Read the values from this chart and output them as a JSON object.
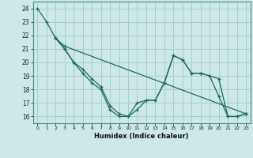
{
  "title": "",
  "xlabel": "Humidex (Indice chaleur)",
  "bg_color": "#cce8e8",
  "grid_color": "#aacccc",
  "line_color": "#1a6b5a",
  "xlim": [
    -0.5,
    23.5
  ],
  "ylim": [
    15.5,
    24.5
  ],
  "xticks": [
    0,
    1,
    2,
    3,
    4,
    5,
    6,
    7,
    8,
    9,
    10,
    11,
    12,
    13,
    14,
    15,
    16,
    17,
    18,
    19,
    20,
    21,
    22,
    23
  ],
  "yticks": [
    16,
    17,
    18,
    19,
    20,
    21,
    22,
    23,
    24
  ],
  "line1_x": [
    0,
    1,
    2,
    3,
    4,
    5,
    6,
    7,
    8,
    9,
    10,
    11,
    12,
    13,
    14,
    15,
    16,
    17,
    18,
    19,
    20,
    21,
    22,
    23
  ],
  "line1_y": [
    24,
    23,
    21.8,
    21,
    20,
    19.2,
    18.5,
    18,
    16.5,
    16,
    16,
    17,
    17.2,
    17.2,
    18.5,
    20.5,
    20.2,
    19.2,
    19.2,
    19,
    18.8,
    16,
    16,
    16.2
  ],
  "line2_x": [
    2,
    3,
    4,
    5,
    6,
    7,
    8,
    9,
    10,
    11,
    12,
    13,
    14,
    15,
    16,
    17,
    18,
    19,
    20,
    21,
    22,
    23
  ],
  "line2_y": [
    21.8,
    21,
    20,
    19.5,
    18.8,
    18.2,
    16.8,
    16.2,
    16,
    16.5,
    17.2,
    17.2,
    18.5,
    20.5,
    20.2,
    19.2,
    19.2,
    19,
    17.5,
    16,
    16,
    16.2
  ],
  "line3_x": [
    2,
    3,
    23
  ],
  "line3_y": [
    21.8,
    21.2,
    16.2
  ]
}
